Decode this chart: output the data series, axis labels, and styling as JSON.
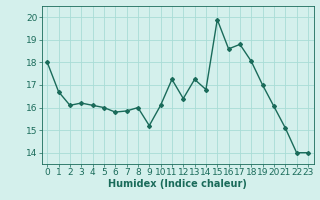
{
  "x": [
    0,
    1,
    2,
    3,
    4,
    5,
    6,
    7,
    8,
    9,
    10,
    11,
    12,
    13,
    14,
    15,
    16,
    17,
    18,
    19,
    20,
    21,
    22,
    23
  ],
  "y": [
    18,
    16.7,
    16.1,
    16.2,
    16.1,
    16.0,
    15.8,
    15.85,
    16.0,
    15.2,
    16.1,
    17.25,
    16.4,
    17.25,
    16.8,
    19.9,
    18.6,
    18.8,
    18.05,
    17.0,
    16.05,
    15.1,
    14.0,
    14.0
  ],
  "line_color": "#1a6b5a",
  "marker": "D",
  "marker_size": 2,
  "bg_color": "#d4f0ec",
  "grid_color": "#a8dcd6",
  "xlabel": "Humidex (Indice chaleur)",
  "ylim": [
    13.5,
    20.5
  ],
  "xlim": [
    -0.5,
    23.5
  ],
  "yticks": [
    14,
    15,
    16,
    17,
    18,
    19,
    20
  ],
  "xticks": [
    0,
    1,
    2,
    3,
    4,
    5,
    6,
    7,
    8,
    9,
    10,
    11,
    12,
    13,
    14,
    15,
    16,
    17,
    18,
    19,
    20,
    21,
    22,
    23
  ],
  "linewidth": 1.0,
  "xlabel_fontsize": 7,
  "tick_fontsize": 6.5
}
